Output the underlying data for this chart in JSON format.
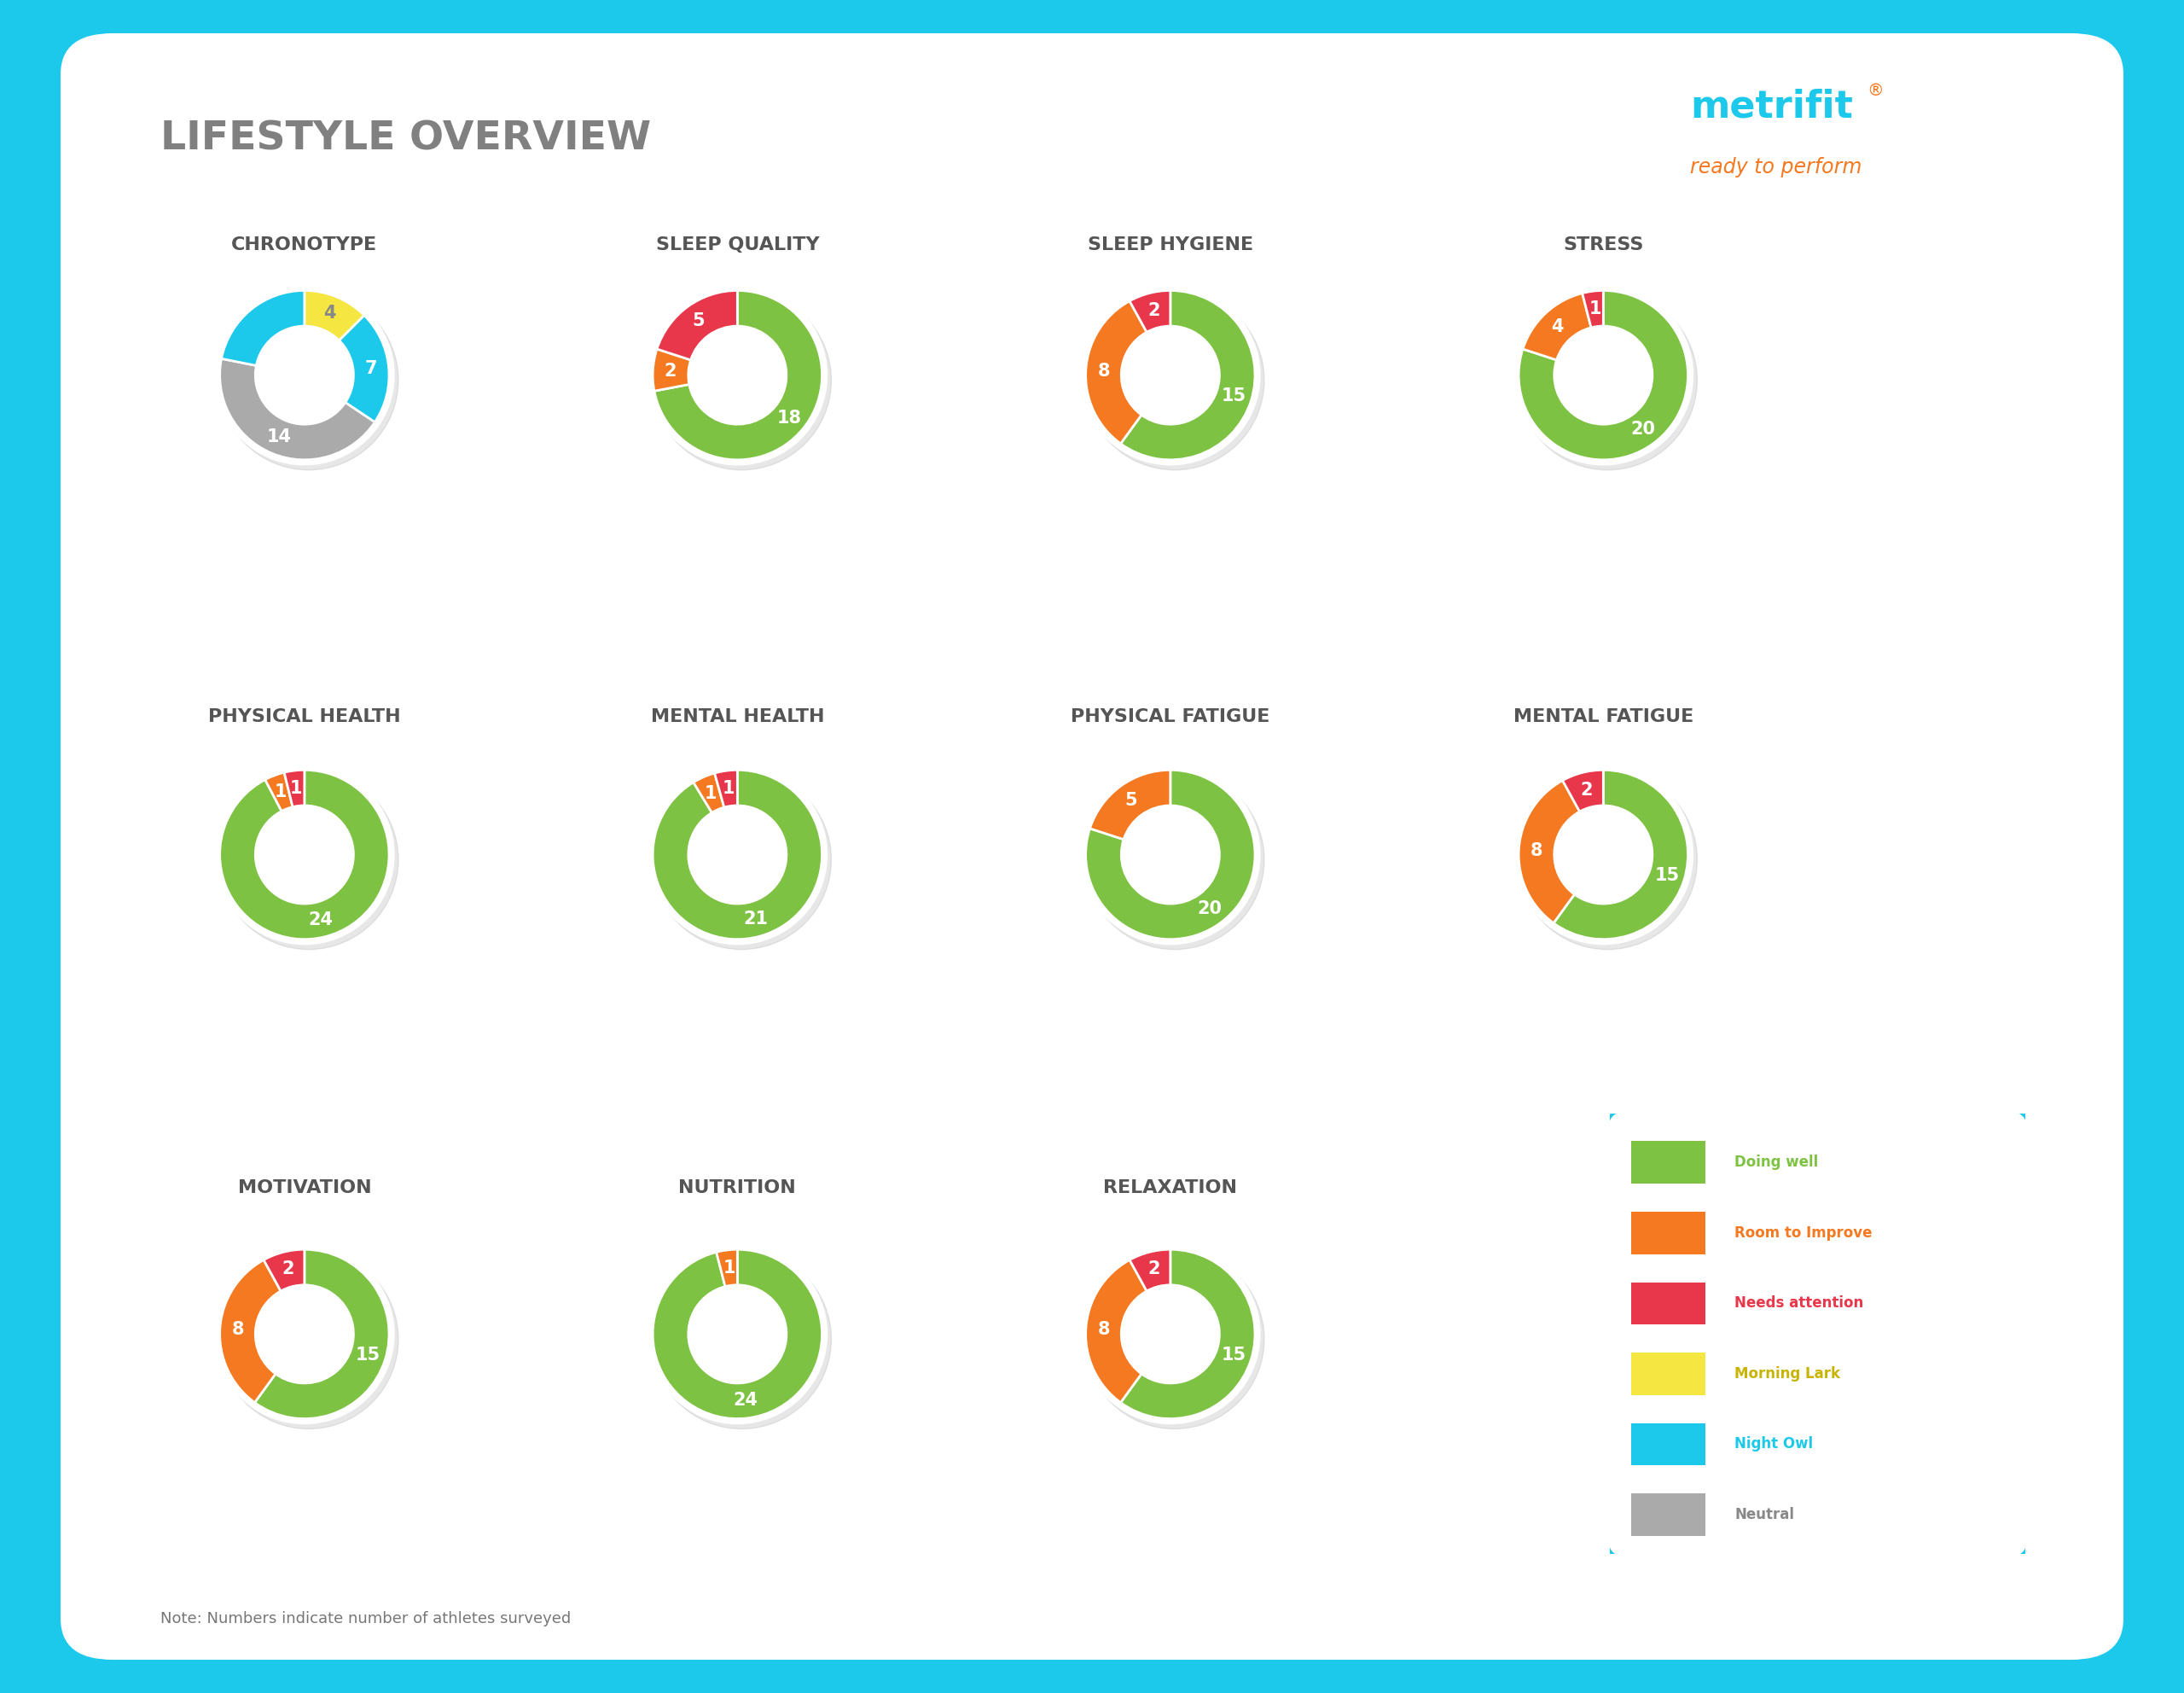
{
  "title": "LIFESTYLE OVERVIEW",
  "bg_color": "#1DC9EA",
  "card_color": "#FFFFFF",
  "title_color": "#808080",
  "metrifit_blue": "#1DC9EA",
  "metrifit_orange": "#F47920",
  "note": "Note: Numbers indicate number of athletes surveyed",
  "charts": [
    {
      "title": "CHRONOTYPE",
      "values": [
        4,
        7,
        14,
        7
      ],
      "colors": [
        "#F5E642",
        "#1DC9EA",
        "#AAAAAA",
        "#1DC9EA"
      ],
      "labels": [
        "4",
        "7",
        "14",
        ""
      ],
      "label_colors": [
        "#888888",
        "#FFFFFF",
        "#FFFFFF",
        ""
      ],
      "row": 0,
      "col": 0
    },
    {
      "title": "SLEEP QUALITY",
      "values": [
        18,
        2,
        5
      ],
      "colors": [
        "#7DC242",
        "#F47920",
        "#E8374A"
      ],
      "labels": [
        "18",
        "2",
        "5"
      ],
      "label_colors": [
        "#FFFFFF",
        "#FFFFFF",
        "#FFFFFF"
      ],
      "row": 0,
      "col": 1
    },
    {
      "title": "SLEEP HYGIENE",
      "values": [
        15,
        8,
        2
      ],
      "colors": [
        "#7DC242",
        "#F47920",
        "#E8374A"
      ],
      "labels": [
        "15",
        "8",
        "2"
      ],
      "label_colors": [
        "#FFFFFF",
        "#FFFFFF",
        "#FFFFFF"
      ],
      "row": 0,
      "col": 2
    },
    {
      "title": "STRESS",
      "values": [
        20,
        4,
        1
      ],
      "colors": [
        "#7DC242",
        "#F47920",
        "#E8374A"
      ],
      "labels": [
        "20",
        "4",
        "1"
      ],
      "label_colors": [
        "#FFFFFF",
        "#FFFFFF",
        "#FFFFFF"
      ],
      "row": 0,
      "col": 3
    },
    {
      "title": "PHYSICAL HEALTH",
      "values": [
        24,
        1,
        1
      ],
      "colors": [
        "#7DC242",
        "#F47920",
        "#E8374A"
      ],
      "labels": [
        "24",
        "1",
        "1"
      ],
      "label_colors": [
        "#FFFFFF",
        "#FFFFFF",
        "#FFFFFF"
      ],
      "row": 1,
      "col": 0
    },
    {
      "title": "MENTAL HEALTH",
      "values": [
        21,
        1,
        1
      ],
      "colors": [
        "#7DC242",
        "#F47920",
        "#E8374A"
      ],
      "labels": [
        "21",
        "1",
        "1"
      ],
      "label_colors": [
        "#FFFFFF",
        "#FFFFFF",
        "#FFFFFF"
      ],
      "row": 1,
      "col": 1
    },
    {
      "title": "PHYSICAL FATIGUE",
      "values": [
        20,
        5,
        0
      ],
      "colors": [
        "#7DC242",
        "#F47920",
        "#E8374A"
      ],
      "labels": [
        "20",
        "5",
        ""
      ],
      "label_colors": [
        "#FFFFFF",
        "#FFFFFF",
        "#FFFFFF"
      ],
      "row": 1,
      "col": 2
    },
    {
      "title": "MENTAL FATIGUE",
      "values": [
        15,
        8,
        2
      ],
      "colors": [
        "#7DC242",
        "#F47920",
        "#E8374A"
      ],
      "labels": [
        "15",
        "8",
        "2"
      ],
      "label_colors": [
        "#FFFFFF",
        "#FFFFFF",
        "#FFFFFF"
      ],
      "row": 1,
      "col": 3
    },
    {
      "title": "MOTIVATION",
      "values": [
        15,
        8,
        2
      ],
      "colors": [
        "#7DC242",
        "#F47920",
        "#E8374A"
      ],
      "labels": [
        "15",
        "8",
        "2"
      ],
      "label_colors": [
        "#FFFFFF",
        "#FFFFFF",
        "#FFFFFF"
      ],
      "row": 2,
      "col": 0
    },
    {
      "title": "NUTRITION",
      "values": [
        24,
        1,
        0
      ],
      "colors": [
        "#7DC242",
        "#F47920",
        "#E8374A"
      ],
      "labels": [
        "24",
        "1",
        ""
      ],
      "label_colors": [
        "#FFFFFF",
        "#FFFFFF",
        "#FFFFFF"
      ],
      "row": 2,
      "col": 1
    },
    {
      "title": "RELAXATION",
      "values": [
        15,
        8,
        2
      ],
      "colors": [
        "#7DC242",
        "#F47920",
        "#E8374A"
      ],
      "labels": [
        "15",
        "8",
        "2"
      ],
      "label_colors": [
        "#FFFFFF",
        "#FFFFFF",
        "#FFFFFF"
      ],
      "row": 2,
      "col": 2
    }
  ],
  "legend_items": [
    {
      "label": "Doing well",
      "color": "#7DC242",
      "text_color": "#7DC242"
    },
    {
      "label": "Room to Improve",
      "color": "#F47920",
      "text_color": "#F47920"
    },
    {
      "label": "Needs attention",
      "color": "#E8374A",
      "text_color": "#E8374A"
    },
    {
      "label": "Morning Lark",
      "color": "#F5E642",
      "text_color": "#C8B400"
    },
    {
      "label": "Night Owl",
      "color": "#1DC9EA",
      "text_color": "#1DC9EA"
    },
    {
      "label": "Neutral",
      "color": "#AAAAAA",
      "text_color": "#888888"
    }
  ]
}
